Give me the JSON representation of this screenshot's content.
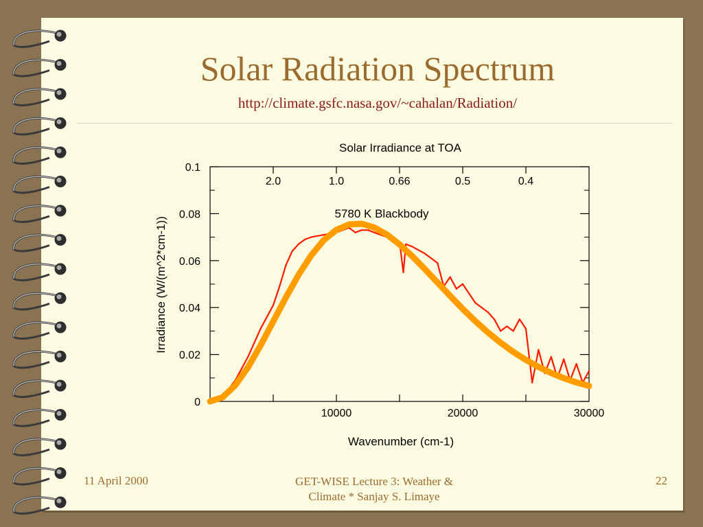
{
  "slide": {
    "title": "Solar Radiation Spectrum",
    "url": "http://climate.gsfc.nasa.gov/~cahalan/Radiation/"
  },
  "footer": {
    "date": "11 April 2000",
    "center_line1": "GET-WISE  Lecture 3: Weather &",
    "center_line2": "Climate  * Sanjay S. Limaye",
    "page": "22"
  },
  "colors": {
    "background": "#8a7353",
    "page": "#fbfbe1",
    "title": "#9b6a2e",
    "url": "#8b1a1a",
    "observed": "#ff1a00",
    "blackbody": "#ff9d00"
  },
  "chart_data": {
    "type": "line",
    "title": "Solar Irradiance at TOA",
    "xlabel": "Wavenumber (cm-1)",
    "ylabel": "Irradiance (W/(m^2*cm-1))",
    "xlim": [
      0,
      30000
    ],
    "ylim": [
      0,
      0.1
    ],
    "x_ticks": [
      10000,
      20000,
      30000
    ],
    "y_ticks": [
      0,
      0.02,
      0.04,
      0.06,
      0.08,
      0.1
    ],
    "y_tick_labels": [
      "0",
      "0.02",
      "0.04",
      "0.06",
      "0.08",
      "0.1"
    ],
    "top_axis": {
      "labels": [
        "2.0",
        "1.0",
        "0.66",
        "0.5",
        "0.4"
      ],
      "wavenumbers": [
        5000,
        10000,
        15000,
        20000,
        25000
      ]
    },
    "annotation": "5780 K Blackbody",
    "series": [
      {
        "x": [
          500,
          1000,
          2000,
          3000,
          4000,
          5000,
          5500,
          6000,
          6500,
          7000,
          7500,
          8000,
          9000,
          10000,
          10500,
          11000,
          11500,
          12000,
          12500,
          13000,
          14000,
          15000,
          15300,
          15500,
          16000,
          17000,
          18000,
          18500,
          19000,
          19500,
          20000,
          21000,
          21500,
          22000,
          22500,
          23000,
          23500,
          24000,
          24500,
          25000,
          25500,
          26000,
          26500,
          27000,
          27500,
          28000,
          28500,
          29000,
          29500,
          30000
        ],
        "y": [
          0.0005,
          0.002,
          0.009,
          0.019,
          0.031,
          0.041,
          0.049,
          0.058,
          0.064,
          0.067,
          0.069,
          0.07,
          0.071,
          0.072,
          0.073,
          0.074,
          0.072,
          0.073,
          0.073,
          0.072,
          0.07,
          0.068,
          0.055,
          0.067,
          0.066,
          0.063,
          0.059,
          0.049,
          0.053,
          0.048,
          0.05,
          0.042,
          0.04,
          0.038,
          0.035,
          0.03,
          0.032,
          0.03,
          0.035,
          0.031,
          0.008,
          0.022,
          0.012,
          0.019,
          0.01,
          0.018,
          0.009,
          0.016,
          0.008,
          0.013
        ]
      },
      {
        "name": "5780 K Blackbody",
        "x": [
          0,
          1000,
          2000,
          3000,
          4000,
          5000,
          6000,
          7000,
          8000,
          9000,
          10000,
          11000,
          12000,
          13000,
          14000,
          15000,
          16000,
          17000,
          18000,
          19000,
          20000,
          21000,
          22000,
          23000,
          24000,
          25000,
          26000,
          27000,
          28000,
          29000,
          30000
        ],
        "y": [
          0,
          0.0018,
          0.0069,
          0.0145,
          0.0239,
          0.0341,
          0.0443,
          0.0539,
          0.0622,
          0.0687,
          0.0731,
          0.0754,
          0.0757,
          0.0741,
          0.0711,
          0.0669,
          0.0619,
          0.0564,
          0.0507,
          0.045,
          0.0394,
          0.0342,
          0.0294,
          0.025,
          0.0211,
          0.0177,
          0.0147,
          0.0121,
          0.0099,
          0.0081,
          0.0066
        ]
      }
    ]
  }
}
